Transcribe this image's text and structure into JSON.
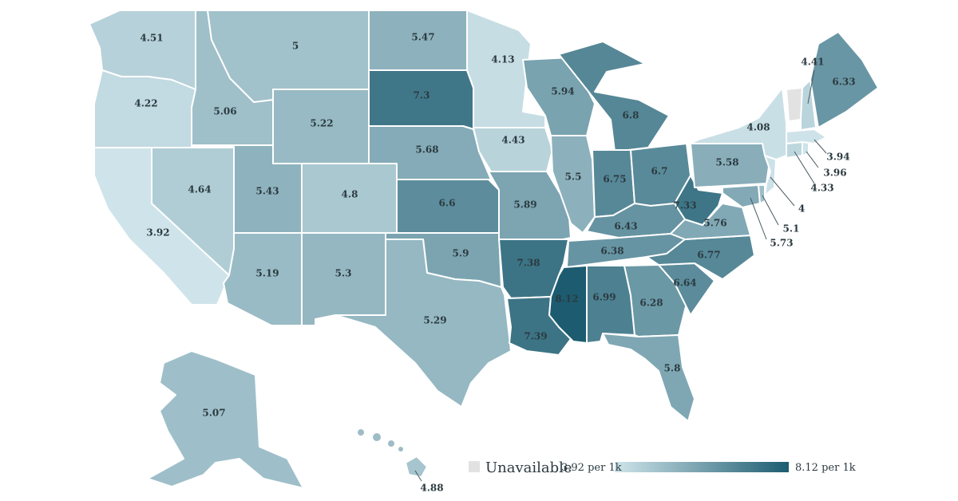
{
  "legend": {
    "unavailable_label": "Unavailable",
    "min_label": "3.92 per 1k",
    "max_label": "8.12 per 1k",
    "min_value": 3.92,
    "max_value": 8.12,
    "unavailable_color": "#e2e2e2",
    "low_color": "#cfe4ea",
    "high_color": "#1d5c70"
  },
  "states": {
    "WA": {
      "value": 4.51,
      "label": "4.51"
    },
    "OR": {
      "value": 4.22,
      "label": "4.22"
    },
    "CA": {
      "value": 3.92,
      "label": "3.92"
    },
    "ID": {
      "value": 5.06,
      "label": "5.06"
    },
    "NV": {
      "value": 4.64,
      "label": "4.64"
    },
    "MT": {
      "value": 5.0,
      "label": "5"
    },
    "WY": {
      "value": 5.22,
      "label": "5.22"
    },
    "UT": {
      "value": 5.43,
      "label": "5.43"
    },
    "AZ": {
      "value": 5.19,
      "label": "5.19"
    },
    "CO": {
      "value": 4.8,
      "label": "4.8"
    },
    "NM": {
      "value": 5.3,
      "label": "5.3"
    },
    "ND": {
      "value": 5.47,
      "label": "5.47"
    },
    "SD": {
      "value": 7.3,
      "label": "7.3"
    },
    "NE": {
      "value": 5.68,
      "label": "5.68"
    },
    "KS": {
      "value": 6.6,
      "label": "6.6"
    },
    "OK": {
      "value": 5.9,
      "label": "5.9"
    },
    "TX": {
      "value": 5.29,
      "label": "5.29"
    },
    "MN": {
      "value": 4.13,
      "label": "4.13"
    },
    "IA": {
      "value": 4.43,
      "label": "4.43"
    },
    "MO": {
      "value": 5.89,
      "label": "5.89"
    },
    "AR": {
      "value": 7.38,
      "label": "7.38"
    },
    "LA": {
      "value": 7.39,
      "label": "7.39"
    },
    "WI": {
      "value": 5.94,
      "label": "5.94"
    },
    "IL": {
      "value": 5.5,
      "label": "5.5"
    },
    "MI": {
      "value": 6.8,
      "label": "6.8"
    },
    "IN": {
      "value": 6.75,
      "label": "6.75"
    },
    "OH": {
      "value": 6.7,
      "label": "6.7"
    },
    "KY": {
      "value": 6.43,
      "label": "6.43"
    },
    "TN": {
      "value": 6.38,
      "label": "6.38"
    },
    "MS": {
      "value": 8.12,
      "label": "8.12"
    },
    "AL": {
      "value": 6.99,
      "label": "6.99"
    },
    "GA": {
      "value": 6.28,
      "label": "6.28"
    },
    "FL": {
      "value": 5.8,
      "label": "5.8"
    },
    "SC": {
      "value": 6.64,
      "label": "6.64"
    },
    "NC": {
      "value": 6.77,
      "label": "6.77"
    },
    "VA": {
      "value": 5.76,
      "label": "5.76"
    },
    "WV": {
      "value": 7.33,
      "label": "7.33"
    },
    "PA": {
      "value": 5.58,
      "label": "5.58"
    },
    "NY": {
      "value": 4.08,
      "label": "4.08"
    },
    "ME": {
      "value": 6.33,
      "label": "6.33"
    },
    "NH": {
      "value": 4.41,
      "label": "4.41"
    },
    "VT": {
      "value": null,
      "label": ""
    },
    "MA": {
      "value": 3.94,
      "label": "3.94"
    },
    "RI": {
      "value": 3.96,
      "label": "3.96"
    },
    "CT": {
      "value": 4.33,
      "label": "4.33"
    },
    "NJ": {
      "value": 4.0,
      "label": "4"
    },
    "DE": {
      "value": 5.1,
      "label": "5.1"
    },
    "MD": {
      "value": 5.73,
      "label": "5.73"
    },
    "AK": {
      "value": 5.07,
      "label": "5.07"
    },
    "HI": {
      "value": 4.88,
      "label": "4.88"
    }
  }
}
